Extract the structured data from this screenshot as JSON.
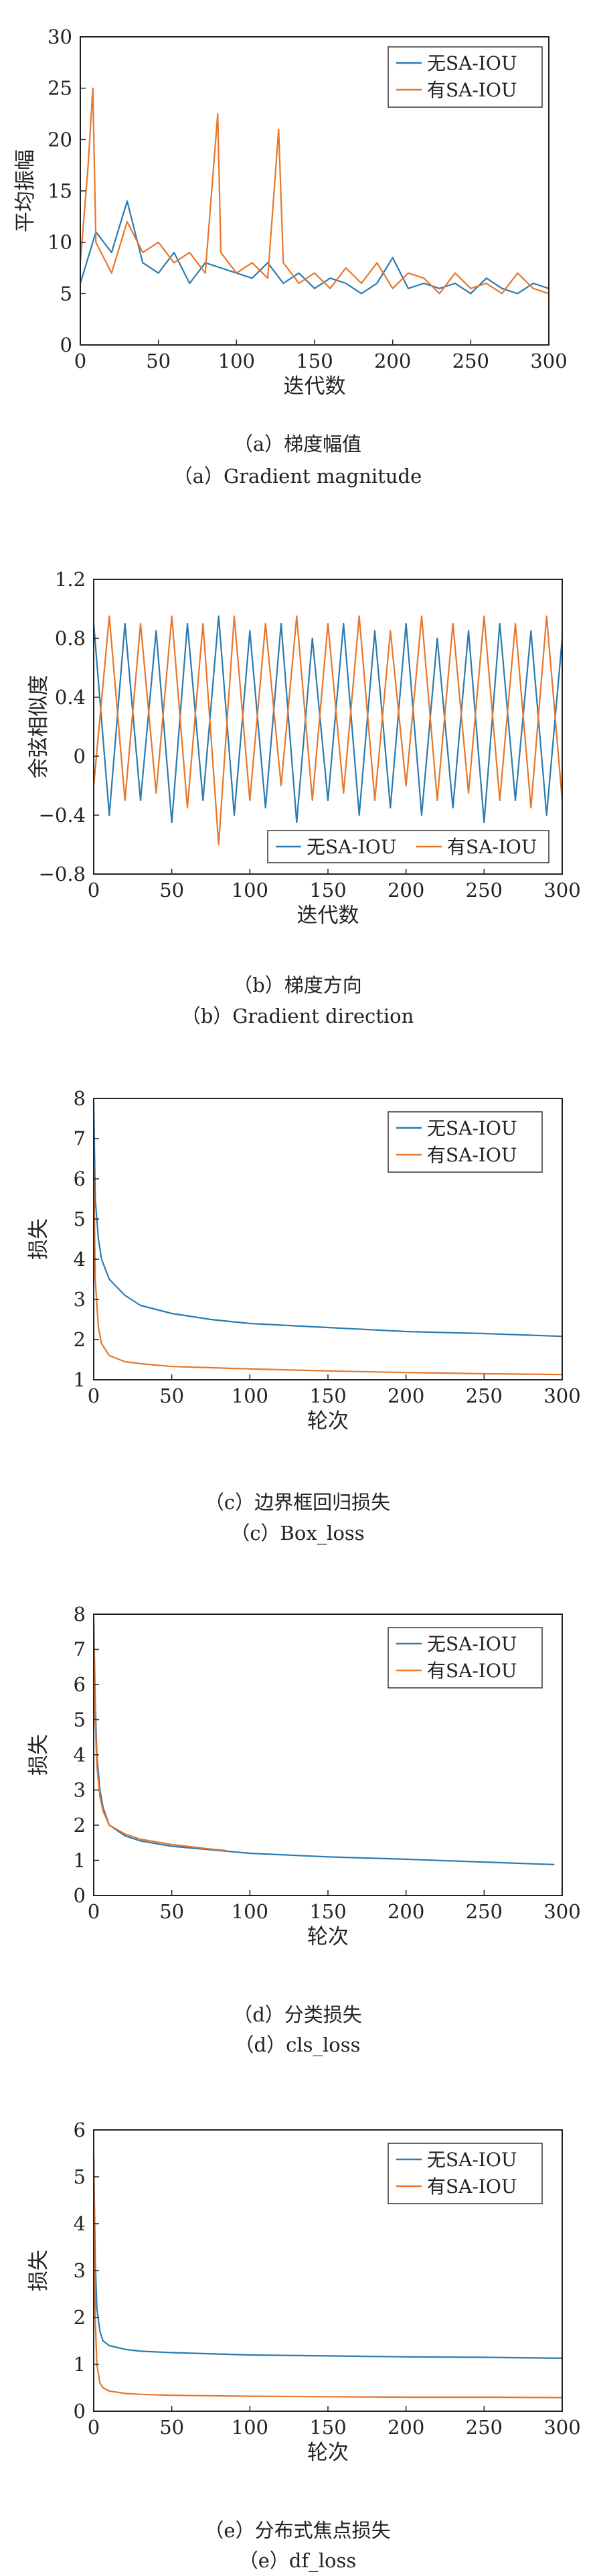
{
  "colors": {
    "no_sa": "#2b7bb0",
    "with_sa": "#e8762b",
    "axis": "#222222"
  },
  "panels": [
    {
      "caption_cn": "（a）梯度幅值",
      "caption_en": "（a）Gradient magnitude",
      "chart_data": {
        "type": "line",
        "xlabel": "迭代数",
        "ylabel": "平均振幅",
        "xlim": [
          0,
          300
        ],
        "ylim": [
          0,
          30
        ],
        "xticks": [
          0,
          50,
          100,
          150,
          200,
          250,
          300
        ],
        "yticks": [
          0,
          5,
          10,
          15,
          20,
          25,
          30
        ],
        "grid": false,
        "legend_position": "top-right",
        "series": [
          {
            "name": "无SA-IOU",
            "color": "#2b7bb0",
            "x": [
              0,
              10,
              20,
              30,
              40,
              50,
              60,
              70,
              80,
              90,
              100,
              110,
              120,
              130,
              140,
              150,
              160,
              170,
              180,
              190,
              200,
              210,
              220,
              230,
              240,
              250,
              260,
              270,
              280,
              290,
              300
            ],
            "y": [
              6.0,
              11.0,
              9.0,
              14.0,
              8.0,
              7.0,
              9.0,
              6.0,
              8.0,
              7.5,
              7.0,
              6.5,
              8.0,
              6.0,
              7.0,
              5.5,
              6.5,
              6.0,
              5.0,
              6.0,
              8.5,
              5.5,
              6.0,
              5.5,
              6.0,
              5.0,
              6.5,
              5.5,
              5.0,
              6.0,
              5.5
            ]
          },
          {
            "name": "有SA-IOU",
            "color": "#e8762b",
            "x": [
              0,
              5,
              8,
              10,
              20,
              30,
              40,
              50,
              60,
              70,
              80,
              88,
              90,
              100,
              110,
              120,
              127,
              130,
              140,
              150,
              160,
              170,
              180,
              190,
              200,
              210,
              220,
              230,
              240,
              250,
              260,
              270,
              280,
              290,
              300
            ],
            "y": [
              8.0,
              17.5,
              25.0,
              10.0,
              7.0,
              12.0,
              9.0,
              10.0,
              8.0,
              9.0,
              7.0,
              22.5,
              9.0,
              7.0,
              8.0,
              6.5,
              21.0,
              8.0,
              6.0,
              7.0,
              5.5,
              7.5,
              6.0,
              8.0,
              5.5,
              7.0,
              6.5,
              5.0,
              7.0,
              5.5,
              6.0,
              5.0,
              7.0,
              5.5,
              5.0
            ]
          }
        ]
      }
    },
    {
      "caption_cn": "（b）梯度方向",
      "caption_en": "（b）Gradient direction",
      "chart_data": {
        "type": "line",
        "xlabel": "迭代数",
        "ylabel": "余弦相似度",
        "xlim": [
          0,
          300
        ],
        "ylim": [
          -0.8,
          1.2
        ],
        "xticks": [
          0,
          50,
          100,
          150,
          200,
          250,
          300
        ],
        "yticks": [
          -0.8,
          -0.4,
          0,
          0.4,
          0.8,
          1.2
        ],
        "ytick_labels": [
          "−0.8",
          "−0.4",
          "0",
          "0.4",
          "0.8",
          "1.2"
        ],
        "grid": false,
        "legend_position": "bottom-right",
        "series": [
          {
            "name": "无SA-IOU",
            "color": "#2b7bb0",
            "x": [
              0,
              10,
              20,
              30,
              40,
              50,
              60,
              70,
              80,
              90,
              100,
              110,
              120,
              130,
              140,
              150,
              160,
              170,
              180,
              190,
              200,
              210,
              220,
              230,
              240,
              250,
              260,
              270,
              280,
              290,
              300
            ],
            "y": [
              0.9,
              -0.4,
              0.9,
              -0.3,
              0.85,
              -0.45,
              0.9,
              -0.3,
              0.95,
              -0.4,
              0.85,
              -0.35,
              0.9,
              -0.45,
              0.8,
              -0.3,
              0.9,
              -0.4,
              0.85,
              -0.35,
              0.9,
              -0.4,
              0.8,
              -0.35,
              0.85,
              -0.45,
              0.9,
              -0.3,
              0.85,
              -0.4,
              0.8
            ]
          },
          {
            "name": "有SA-IOU",
            "color": "#e8762b",
            "x": [
              0,
              10,
              20,
              30,
              40,
              50,
              60,
              70,
              80,
              90,
              100,
              110,
              120,
              130,
              140,
              150,
              160,
              170,
              180,
              190,
              200,
              210,
              220,
              230,
              240,
              250,
              260,
              270,
              280,
              290,
              300
            ],
            "y": [
              -0.2,
              0.95,
              -0.3,
              0.9,
              -0.25,
              0.95,
              -0.35,
              0.9,
              -0.6,
              0.95,
              -0.3,
              0.9,
              -0.2,
              0.95,
              -0.3,
              0.9,
              -0.25,
              0.95,
              -0.3,
              0.85,
              -0.2,
              0.95,
              -0.3,
              0.9,
              -0.25,
              0.95,
              -0.3,
              0.9,
              -0.35,
              0.95,
              -0.3
            ]
          }
        ]
      }
    },
    {
      "caption_cn": "（c）边界框回归损失",
      "caption_en": "（c）Box_loss",
      "chart_data": {
        "type": "line",
        "xlabel": "轮次",
        "ylabel": "损失",
        "xlim": [
          0,
          300
        ],
        "ylim": [
          1,
          8
        ],
        "xticks": [
          0,
          50,
          100,
          150,
          200,
          250,
          300
        ],
        "yticks": [
          1,
          2,
          3,
          4,
          5,
          6,
          7,
          8
        ],
        "grid": false,
        "legend_position": "top-right",
        "series": [
          {
            "name": "无SA-IOU",
            "color": "#2b7bb0",
            "x": [
              0,
              1,
              3,
              5,
              10,
              20,
              30,
              50,
              75,
              100,
              150,
              200,
              250,
              300
            ],
            "y": [
              7.9,
              5.5,
              4.5,
              4.0,
              3.5,
              3.1,
              2.85,
              2.65,
              2.5,
              2.4,
              2.3,
              2.2,
              2.15,
              2.08
            ]
          },
          {
            "name": "有SA-IOU",
            "color": "#e8762b",
            "x": [
              0,
              1,
              3,
              5,
              10,
              20,
              30,
              50,
              75,
              100,
              150,
              200,
              250,
              300
            ],
            "y": [
              6.4,
              3.5,
              2.3,
              1.9,
              1.6,
              1.45,
              1.4,
              1.33,
              1.3,
              1.27,
              1.22,
              1.18,
              1.15,
              1.13
            ]
          }
        ]
      }
    },
    {
      "caption_cn": "（d）分类损失",
      "caption_en": "（d）cls_loss",
      "chart_data": {
        "type": "line",
        "xlabel": "轮次",
        "ylabel": "损失",
        "xlim": [
          0,
          300
        ],
        "ylim": [
          0,
          8
        ],
        "xticks": [
          0,
          50,
          100,
          150,
          200,
          250,
          300
        ],
        "yticks": [
          0,
          1,
          2,
          3,
          4,
          5,
          6,
          7,
          8
        ],
        "grid": false,
        "legend_position": "top-right",
        "series": [
          {
            "name": "无SA-IOU",
            "color": "#2b7bb0",
            "x": [
              0,
              1,
              2,
              4,
              6,
              10,
              20,
              30,
              50,
              75,
              100,
              150,
              200,
              250,
              295
            ],
            "y": [
              7.9,
              5.5,
              4.0,
              3.0,
              2.5,
              2.0,
              1.7,
              1.55,
              1.4,
              1.3,
              1.2,
              1.1,
              1.03,
              0.95,
              0.88
            ]
          },
          {
            "name": "有SA-IOU",
            "color": "#e8762b",
            "x": [
              0,
              1,
              2,
              4,
              6,
              10,
              20,
              30,
              50,
              75,
              85
            ],
            "y": [
              7.6,
              5.0,
              3.7,
              2.8,
              2.4,
              2.0,
              1.75,
              1.6,
              1.45,
              1.32,
              1.28
            ]
          }
        ]
      }
    },
    {
      "caption_cn": "（e）分布式焦点损失",
      "caption_en": "（e）df_loss",
      "chart_data": {
        "type": "line",
        "xlabel": "轮次",
        "ylabel": "损失",
        "xlim": [
          0,
          300
        ],
        "ylim": [
          0,
          6
        ],
        "xticks": [
          0,
          50,
          100,
          150,
          200,
          250,
          300
        ],
        "yticks": [
          0,
          1,
          2,
          3,
          4,
          5,
          6
        ],
        "grid": false,
        "legend_position": "top-right",
        "series": [
          {
            "name": "无SA-IOU",
            "color": "#2b7bb0",
            "x": [
              0,
              1,
              2,
              4,
              6,
              10,
              20,
              30,
              50,
              100,
              150,
              200,
              250,
              300
            ],
            "y": [
              5.5,
              3.2,
              2.2,
              1.7,
              1.5,
              1.4,
              1.32,
              1.28,
              1.25,
              1.2,
              1.18,
              1.16,
              1.15,
              1.13
            ]
          },
          {
            "name": "有SA-IOU",
            "color": "#e8762b",
            "x": [
              0,
              1,
              2,
              4,
              6,
              10,
              20,
              30,
              50,
              100,
              150,
              200,
              250,
              300
            ],
            "y": [
              5.5,
              2.0,
              1.0,
              0.6,
              0.5,
              0.43,
              0.38,
              0.36,
              0.34,
              0.32,
              0.31,
              0.3,
              0.3,
              0.29
            ]
          }
        ]
      }
    }
  ]
}
